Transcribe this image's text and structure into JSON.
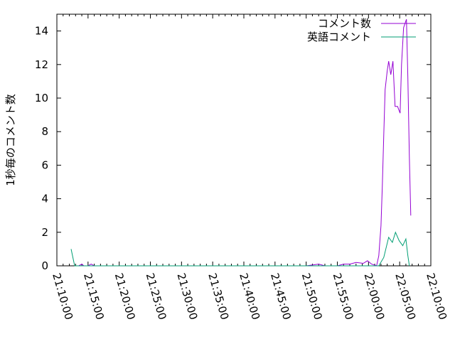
{
  "chart_data": {
    "type": "line",
    "title": "",
    "xlabel": "",
    "ylabel": "1秒毎のコメント数",
    "xlim": [
      "21:10:00",
      "22:10:00"
    ],
    "ylim": [
      0,
      15
    ],
    "xticks": [
      "21:10:00",
      "21:15:00",
      "21:20:00",
      "21:25:00",
      "21:30:00",
      "21:35:00",
      "21:40:00",
      "21:45:00",
      "21:50:00",
      "21:55:00",
      "22:00:00",
      "22:05:00",
      "22:10:00"
    ],
    "yticks": [
      0,
      2,
      4,
      6,
      8,
      10,
      12,
      14
    ],
    "grid": false,
    "legend_position": "top-right",
    "series": [
      {
        "name": "コメント数",
        "color": "#9400d3",
        "points": [
          [
            "21:13:30",
            0
          ],
          [
            "21:14:00",
            0.1
          ],
          [
            "21:14:20",
            0
          ],
          [
            "21:15:00",
            0
          ],
          [
            "21:15:30",
            0.1
          ],
          [
            "21:16:00",
            0
          ],
          [
            "21:50:00",
            0
          ],
          [
            "21:52:00",
            0.1
          ],
          [
            "21:53:00",
            0
          ],
          [
            "21:55:00",
            0
          ],
          [
            "21:56:00",
            0.1
          ],
          [
            "21:57:00",
            0.1
          ],
          [
            "21:58:00",
            0.2
          ],
          [
            "21:59:10",
            0.15
          ],
          [
            "21:59:50",
            0.3
          ],
          [
            "22:00:30",
            0.1
          ],
          [
            "22:01:18",
            0
          ],
          [
            "22:01:39",
            0.6
          ],
          [
            "22:02:00",
            2.4
          ],
          [
            "22:02:13",
            4.8
          ],
          [
            "22:02:27",
            7.8
          ],
          [
            "22:02:40",
            10.5
          ],
          [
            "22:03:00",
            11.6
          ],
          [
            "22:03:14",
            12.2
          ],
          [
            "22:03:35",
            11.4
          ],
          [
            "22:03:55",
            12.2
          ],
          [
            "22:04:16",
            9.5
          ],
          [
            "22:04:40",
            9.5
          ],
          [
            "22:05:04",
            9.1
          ],
          [
            "22:05:18",
            12.0
          ],
          [
            "22:05:38",
            14.2
          ],
          [
            "22:06:05",
            14.7
          ],
          [
            "22:06:19",
            11.2
          ],
          [
            "22:06:33",
            6.5
          ],
          [
            "22:06:47",
            3.0
          ]
        ]
      },
      {
        "name": "英語コメント",
        "color": "#009e73",
        "points": [
          [
            "21:12:17",
            1.0
          ],
          [
            "21:12:51",
            0
          ],
          [
            "22:01:39",
            0
          ],
          [
            "22:02:27",
            0.5
          ],
          [
            "22:03:14",
            1.7
          ],
          [
            "22:03:50",
            1.4
          ],
          [
            "22:04:20",
            2.0
          ],
          [
            "22:04:55",
            1.5
          ],
          [
            "22:05:30",
            1.2
          ],
          [
            "22:06:00",
            1.6
          ],
          [
            "22:06:19",
            0.6
          ],
          [
            "22:06:33",
            0
          ]
        ]
      }
    ]
  }
}
